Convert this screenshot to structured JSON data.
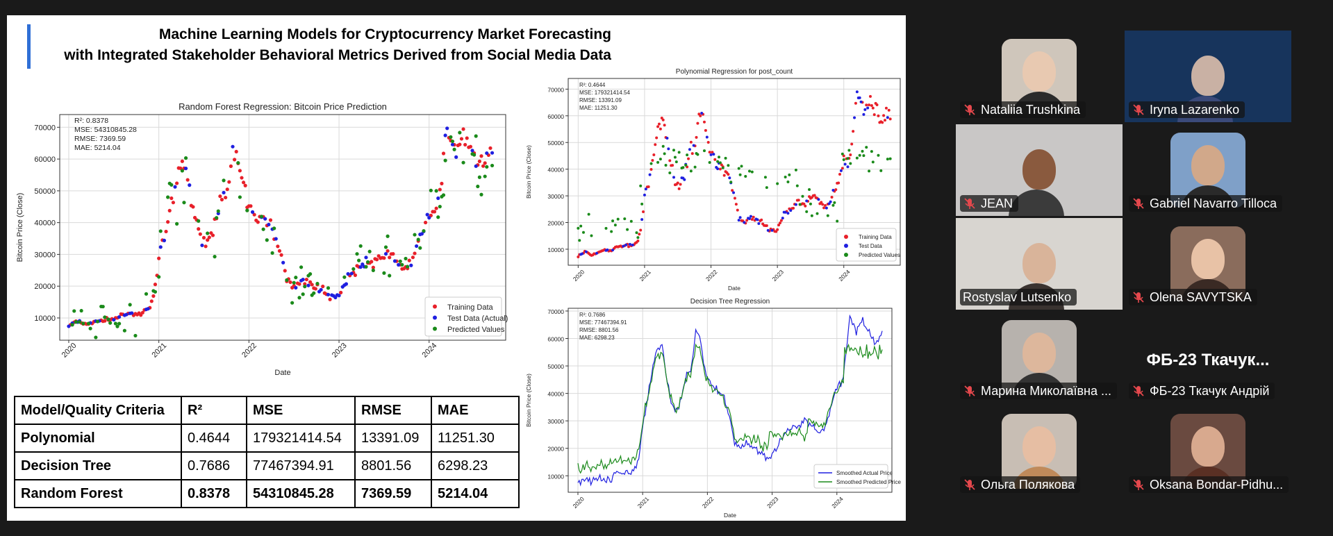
{
  "slide": {
    "title_line1": "Machine Learning Models for Cryptocurrency Market Forecasting",
    "title_line2": "with Integrated Stakeholder Behavioral Metrics Derived from Social Media Data",
    "accent_color": "#2f6fd6"
  },
  "chart_data": [
    {
      "id": "random-forest",
      "type": "scatter",
      "title": "Random Forest Regression: Bitcoin Price Prediction",
      "xlabel": "Date",
      "ylabel": "Bitcoin Price (Close)",
      "x_ticks": [
        "2020",
        "2021",
        "2022",
        "2023",
        "2024"
      ],
      "y_ticks": [
        10000,
        20000,
        30000,
        40000,
        50000,
        60000,
        70000
      ],
      "xlim": [
        2019.9,
        2024.85
      ],
      "ylim": [
        3000,
        74000
      ],
      "metrics": [
        "R²: 0.8378",
        "MSE: 54310845.28",
        "RMSE: 7369.59",
        "MAE: 5214.04"
      ],
      "legend": [
        "Training Data",
        "Test Data (Actual)",
        "Predicted Values"
      ],
      "legend_position": "bottom-right",
      "colors": [
        "#e8202a",
        "#1f1fe0",
        "#1a8a1a"
      ],
      "grid": true
    },
    {
      "id": "polynomial",
      "type": "scatter",
      "title": "Polynomial Regression for post_count",
      "xlabel": "Date",
      "ylabel": "Bitcoin Price (Close)",
      "x_ticks": [
        "2020",
        "2021",
        "2022",
        "2023",
        "2024"
      ],
      "y_ticks": [
        10000,
        20000,
        30000,
        40000,
        50000,
        60000,
        70000
      ],
      "xlim": [
        2019.85,
        2024.85
      ],
      "ylim": [
        4000,
        74000
      ],
      "metrics": [
        "R²: 0.4644",
        "MSE: 179321414.54",
        "RMSE: 13391.09",
        "MAE: 11251.30"
      ],
      "legend": [
        "Training Data",
        "Test Data",
        "Predicted Values"
      ],
      "legend_position": "bottom-right",
      "colors": [
        "#e8202a",
        "#1f1fe0",
        "#1a8a1a"
      ],
      "grid": true
    },
    {
      "id": "decision-tree",
      "type": "line",
      "title": "Decision Tree Regression",
      "xlabel": "Date",
      "ylabel": "Bitcoin Price (Close)",
      "x_ticks": [
        "2020",
        "2021",
        "2022",
        "2023",
        "2024"
      ],
      "y_ticks": [
        10000,
        20000,
        30000,
        40000,
        50000,
        60000,
        70000
      ],
      "xlim": [
        2019.85,
        2024.85
      ],
      "ylim": [
        4000,
        71000
      ],
      "metrics": [
        "R²: 0.7686",
        "MSE: 77467394.91",
        "RMSE: 8801.56",
        "MAE: 6298.23"
      ],
      "legend": [
        "Smoothed Actual Price",
        "Smoothed Predicted Price"
      ],
      "legend_position": "bottom-right",
      "colors": [
        "#1f1fe0",
        "#1a8a1a"
      ],
      "grid": true
    }
  ],
  "btc_series": {
    "x": [
      2020.0,
      2020.1,
      2020.2,
      2020.3,
      2020.4,
      2020.5,
      2020.6,
      2020.7,
      2020.8,
      2020.9,
      2020.95,
      2021.0,
      2021.08,
      2021.15,
      2021.22,
      2021.3,
      2021.38,
      2021.45,
      2021.52,
      2021.6,
      2021.68,
      2021.75,
      2021.82,
      2021.88,
      2021.95,
      2022.0,
      2022.08,
      2022.15,
      2022.25,
      2022.35,
      2022.42,
      2022.5,
      2022.6,
      2022.7,
      2022.8,
      2022.87,
      2022.95,
      2023.0,
      2023.1,
      2023.2,
      2023.3,
      2023.4,
      2023.5,
      2023.6,
      2023.7,
      2023.8,
      2023.9,
      2024.0,
      2024.1,
      2024.2,
      2024.3,
      2024.4,
      2024.5,
      2024.6,
      2024.7
    ],
    "y": [
      7500,
      9000,
      8000,
      8800,
      9500,
      9300,
      11000,
      11500,
      11000,
      13000,
      18000,
      29000,
      38000,
      48000,
      56000,
      58000,
      44000,
      36000,
      33000,
      38000,
      47000,
      48000,
      62000,
      60000,
      50000,
      46000,
      42000,
      41000,
      39000,
      30000,
      22000,
      20000,
      22000,
      20000,
      19500,
      17000,
      16800,
      17000,
      23000,
      25000,
      28000,
      27000,
      30000,
      29000,
      26000,
      27000,
      35000,
      42000,
      45000,
      68000,
      63000,
      66000,
      62000,
      58000,
      62000
    ]
  },
  "table": {
    "headers": [
      "Model/Quality Criteria",
      "R²",
      "MSE",
      "RMSE",
      "MAE"
    ],
    "rows": [
      [
        "Polynomial",
        "0.4644",
        "179321414.54",
        "13391.09",
        "11251.30"
      ],
      [
        "Decision Tree",
        "0.7686",
        "77467394.91",
        "8801.56",
        "6298.23"
      ],
      [
        "Random Forest",
        "0.8378",
        "54310845.28",
        "7369.59",
        "5214.04"
      ]
    ]
  },
  "participants": [
    {
      "name": "Nataliia Trushkina",
      "muted": true,
      "kind": "avatar",
      "bg": "#cfc6bb",
      "skin": "#e8c9b1",
      "shirt": "#2b2b2b"
    },
    {
      "name": "Iryna Lazarenko",
      "muted": true,
      "kind": "video",
      "bg": "#17345c",
      "skin": "#c9b1a4",
      "shirt": "#3b4a7a"
    },
    {
      "name": "JEAN",
      "muted": true,
      "kind": "video",
      "bg": "#c9c7c6",
      "skin": "#8a5a3e",
      "shirt": "#3b3b3b"
    },
    {
      "name": "Gabriel Navarro Tilloca",
      "muted": true,
      "kind": "avatar",
      "bg": "#7fa0c8",
      "skin": "#d1a88a",
      "shirt": "#2a2a2a"
    },
    {
      "name": "Rostyslav Lutsenko",
      "muted": false,
      "kind": "video",
      "bg": "#d8d5d0",
      "skin": "#d9b49a",
      "shirt": "#3a3330",
      "active": true
    },
    {
      "name": "Olena SAVYTSKA",
      "muted": true,
      "kind": "avatar",
      "bg": "#8a6c5c",
      "skin": "#e8c2a6",
      "shirt": "#3a2a24"
    },
    {
      "name": "Марина Миколаївна ...",
      "muted": true,
      "kind": "avatar",
      "bg": "#b7b2ad",
      "skin": "#ddb79c",
      "shirt": "#333333"
    },
    {
      "name": "ФБ-23 Ткачук Андрій",
      "muted": true,
      "kind": "text",
      "display": "ФБ-23  Ткачук..."
    },
    {
      "name": "Ольга Полякова",
      "muted": true,
      "kind": "avatar",
      "bg": "#c8beb4",
      "skin": "#e6bea3",
      "shirt": "#c08a5a"
    },
    {
      "name": "Oksana Bondar-Pidhu...",
      "muted": true,
      "kind": "avatar",
      "bg": "#6a4a40",
      "skin": "#d8a98e",
      "shirt": "#5a3024"
    }
  ]
}
